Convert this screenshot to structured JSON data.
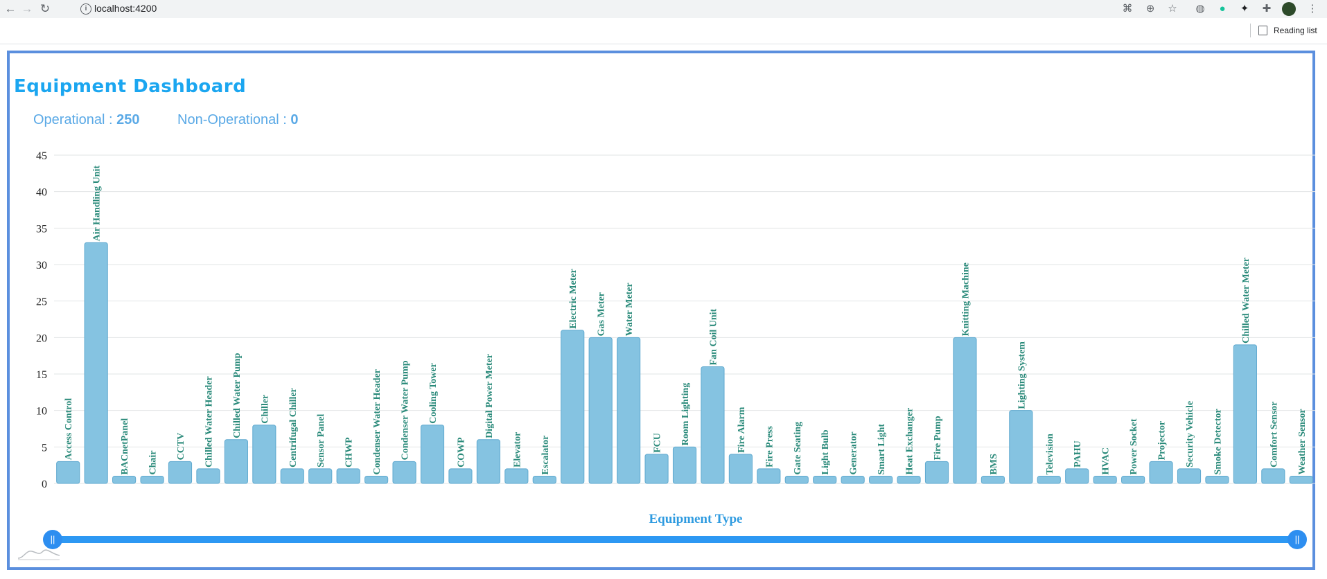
{
  "browser": {
    "url": "localhost:4200",
    "reading_list": "Reading list"
  },
  "dashboard": {
    "title": "Equipment Dashboard",
    "operational_label": "Operational : ",
    "operational_value": "250",
    "non_operational_label": "Non-Operational : ",
    "non_operational_value": "0"
  },
  "chart_data": {
    "type": "bar",
    "xlabel": "Equipment Type",
    "ylabel": "",
    "ylim": [
      0,
      45
    ],
    "yticks": [
      0,
      5,
      10,
      15,
      20,
      25,
      30,
      35,
      40,
      45
    ],
    "grid": true,
    "bar_color": "#85c3e1",
    "bar_border": "#5fa9cf",
    "label_color": "#2a8a7a",
    "axis_title_color": "#2f9be0",
    "categories": [
      "Access Control",
      "Air Handling Unit",
      "BACnetPanel",
      "Chair",
      "CCTV",
      "Chilled Water Header",
      "Chilled Water Pump",
      "Chiller",
      "Centrifugal Chiller",
      "Sensor Panel",
      "CHWP",
      "Condenser Water Header",
      "Condenser Water Pump",
      "Cooling Tower",
      "COWP",
      "Digital Power Meter",
      "Elevator",
      "Escalator",
      "Electric Meter",
      "Gas Meter",
      "Water Meter",
      "FCU",
      "Room Lighting",
      "Fan Coil Unit",
      "Fire Alarm",
      "Fire Press",
      "Gate Seating",
      "Light Bulb",
      "Generator",
      "Smart Light",
      "Heat Exchanger",
      "Fire Pump",
      "Knitting Machine",
      "BMS",
      "Lighting System",
      "Television",
      "PAHU",
      "HVAC",
      "Power Socket",
      "Projector",
      "Security Vehicle",
      "Smoke Detector",
      "Chilled Water Meter",
      "Comfort Sensor",
      "Weather Sensor"
    ],
    "values": [
      3,
      33,
      1,
      1,
      3,
      2,
      6,
      8,
      2,
      2,
      2,
      1,
      3,
      8,
      2,
      6,
      2,
      1,
      21,
      20,
      20,
      4,
      5,
      16,
      4,
      2,
      1,
      1,
      1,
      1,
      1,
      3,
      20,
      1,
      10,
      1,
      2,
      1,
      1,
      3,
      2,
      1,
      19,
      2,
      1
    ]
  }
}
